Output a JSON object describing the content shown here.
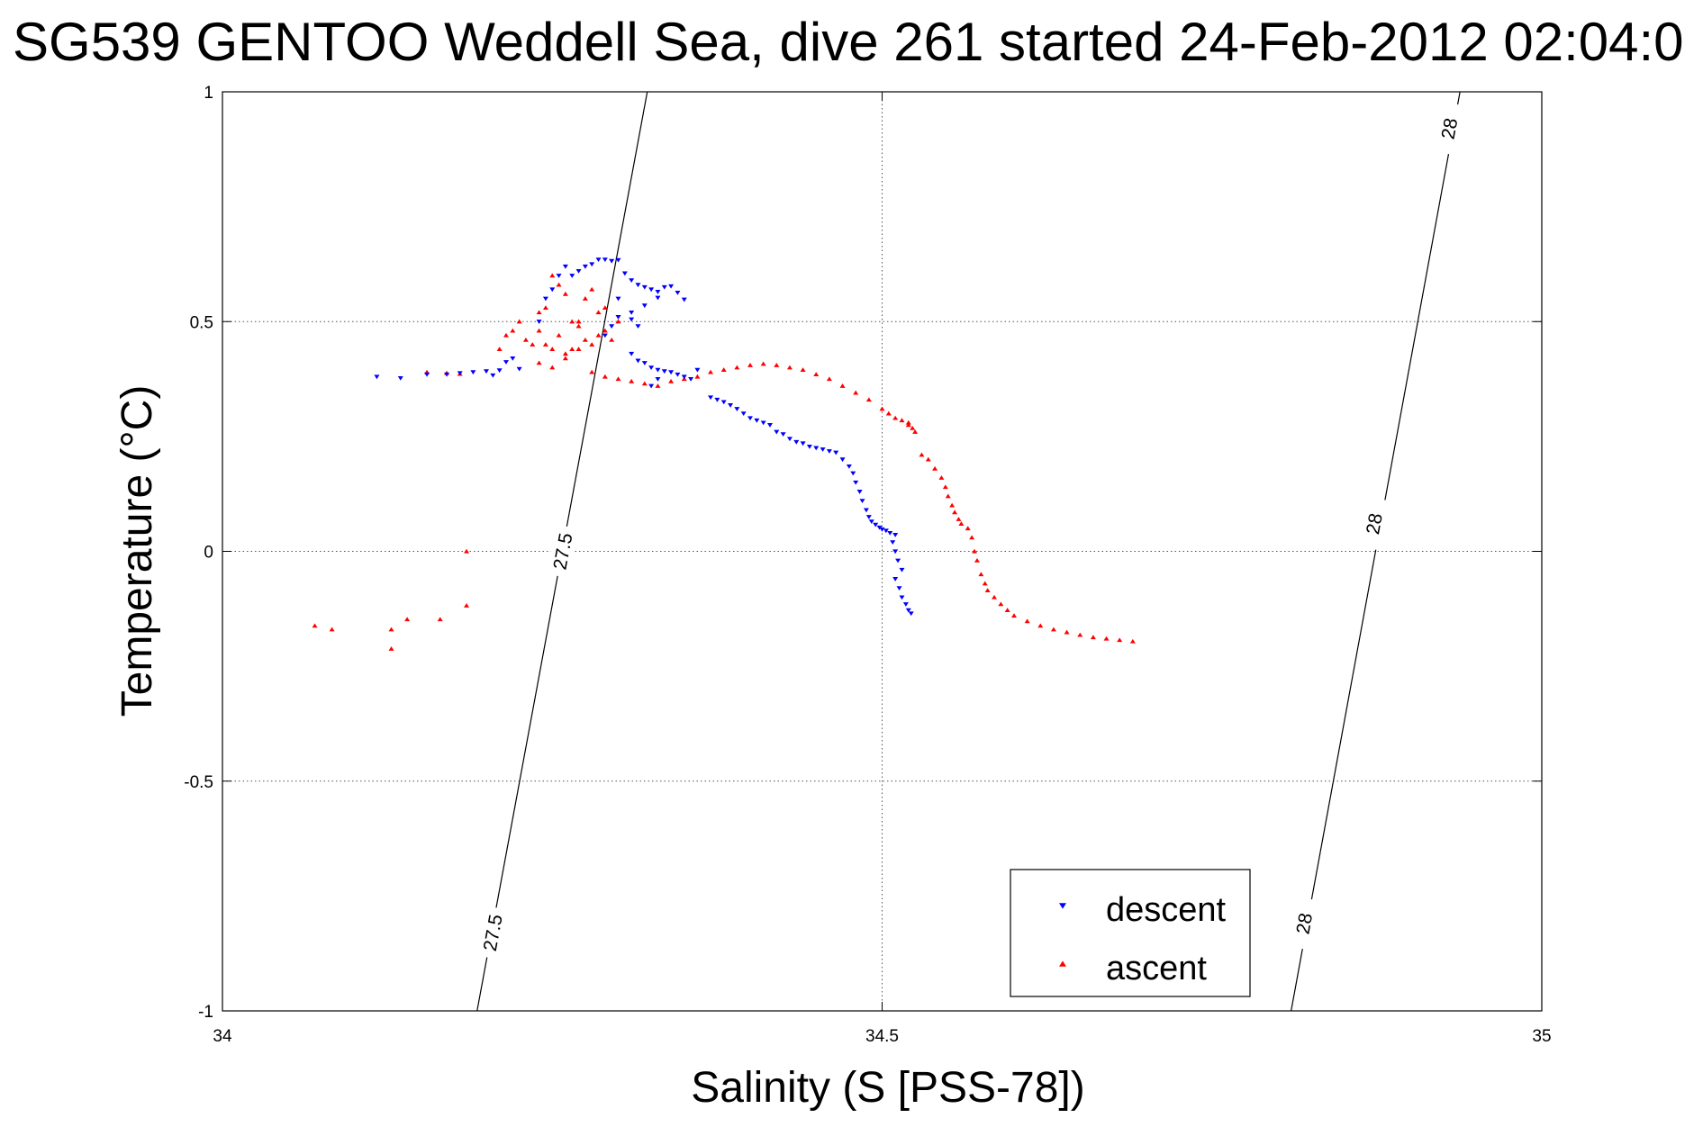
{
  "chart_data": {
    "type": "scatter",
    "title": "SG539 GENTOO Weddell Sea, dive 261 started 24-Feb-2012 02:04:0",
    "xlabel": "Salinity (S [PSS-78])",
    "ylabel": "Temperature (°C)",
    "xlim": [
      34,
      35
    ],
    "ylim": [
      -1,
      1
    ],
    "xticks": [
      34,
      34.5,
      35
    ],
    "xtick_labels": [
      "34",
      "34.5",
      "35"
    ],
    "yticks": [
      -1,
      -0.5,
      0,
      0.5,
      1
    ],
    "ytick_labels": [
      "-1",
      "-0.5",
      "0",
      "0.5",
      "1"
    ],
    "grid": true,
    "legend_position": "bottom-right",
    "density_contours": [
      {
        "level": "27.5",
        "points": [
          [
            34.193,
            -1
          ],
          [
            34.322,
            1
          ]
        ],
        "label_positions": [
          [
            34.205,
            -0.83
          ],
          [
            34.258,
            0
          ]
        ]
      },
      {
        "level": "28",
        "points": [
          [
            34.81,
            -1
          ],
          [
            34.938,
            1
          ]
        ],
        "label_positions": [
          [
            34.82,
            -0.81
          ],
          [
            34.873,
            0.06
          ],
          [
            34.93,
            0.92
          ]
        ]
      }
    ],
    "series": [
      {
        "name": "descent",
        "color": "#0000ff",
        "marker": "triangle-down",
        "points": [
          [
            34.117,
            0.38
          ],
          [
            34.135,
            0.377
          ],
          [
            34.155,
            0.385
          ],
          [
            34.17,
            0.385
          ],
          [
            34.18,
            0.388
          ],
          [
            34.19,
            0.39
          ],
          [
            34.2,
            0.392
          ],
          [
            34.205,
            0.383
          ],
          [
            34.21,
            0.394
          ],
          [
            34.215,
            0.412
          ],
          [
            34.22,
            0.42
          ],
          [
            34.225,
            0.397
          ],
          [
            34.24,
            0.5
          ],
          [
            34.245,
            0.55
          ],
          [
            34.25,
            0.57
          ],
          [
            34.255,
            0.6
          ],
          [
            34.26,
            0.62
          ],
          [
            34.265,
            0.6
          ],
          [
            34.27,
            0.61
          ],
          [
            34.275,
            0.62
          ],
          [
            34.28,
            0.625
          ],
          [
            34.285,
            0.635
          ],
          [
            34.29,
            0.635
          ],
          [
            34.295,
            0.632
          ],
          [
            34.3,
            0.634
          ],
          [
            34.305,
            0.605
          ],
          [
            34.31,
            0.59
          ],
          [
            34.315,
            0.58
          ],
          [
            34.32,
            0.575
          ],
          [
            34.325,
            0.57
          ],
          [
            34.33,
            0.565
          ],
          [
            34.335,
            0.575
          ],
          [
            34.34,
            0.577
          ],
          [
            34.345,
            0.563
          ],
          [
            34.35,
            0.548
          ],
          [
            34.33,
            0.552
          ],
          [
            34.32,
            0.535
          ],
          [
            34.31,
            0.52
          ],
          [
            34.3,
            0.51
          ],
          [
            34.295,
            0.49
          ],
          [
            34.29,
            0.47
          ],
          [
            34.3,
            0.55
          ],
          [
            34.31,
            0.505
          ],
          [
            34.315,
            0.49
          ],
          [
            34.31,
            0.43
          ],
          [
            34.315,
            0.415
          ],
          [
            34.32,
            0.41
          ],
          [
            34.325,
            0.4
          ],
          [
            34.33,
            0.395
          ],
          [
            34.335,
            0.392
          ],
          [
            34.34,
            0.39
          ],
          [
            34.345,
            0.385
          ],
          [
            34.35,
            0.38
          ],
          [
            34.33,
            0.375
          ],
          [
            34.325,
            0.36
          ],
          [
            34.355,
            0.375
          ],
          [
            34.36,
            0.395
          ],
          [
            34.37,
            0.335
          ],
          [
            34.375,
            0.33
          ],
          [
            34.38,
            0.325
          ],
          [
            34.385,
            0.318
          ],
          [
            34.39,
            0.31
          ],
          [
            34.395,
            0.3
          ],
          [
            34.4,
            0.29
          ],
          [
            34.405,
            0.285
          ],
          [
            34.41,
            0.28
          ],
          [
            34.415,
            0.275
          ],
          [
            34.42,
            0.26
          ],
          [
            34.425,
            0.255
          ],
          [
            34.43,
            0.245
          ],
          [
            34.435,
            0.238
          ],
          [
            34.44,
            0.235
          ],
          [
            34.445,
            0.228
          ],
          [
            34.45,
            0.225
          ],
          [
            34.455,
            0.222
          ],
          [
            34.46,
            0.218
          ],
          [
            34.465,
            0.215
          ],
          [
            34.47,
            0.2
          ],
          [
            34.475,
            0.185
          ],
          [
            34.478,
            0.17
          ],
          [
            34.48,
            0.15
          ],
          [
            34.483,
            0.13
          ],
          [
            34.485,
            0.11
          ],
          [
            34.488,
            0.09
          ],
          [
            34.49,
            0.075
          ],
          [
            34.492,
            0.065
          ],
          [
            34.495,
            0.058
          ],
          [
            34.498,
            0.052
          ],
          [
            34.5,
            0.048
          ],
          [
            34.503,
            0.045
          ],
          [
            34.506,
            0.04
          ],
          [
            34.51,
            0.036
          ],
          [
            34.508,
            0.02
          ],
          [
            34.51,
            0.0
          ],
          [
            34.512,
            -0.02
          ],
          [
            34.515,
            -0.04
          ],
          [
            34.51,
            -0.06
          ],
          [
            34.513,
            -0.08
          ],
          [
            34.515,
            -0.1
          ],
          [
            34.518,
            -0.115
          ],
          [
            34.52,
            -0.128
          ],
          [
            34.522,
            -0.135
          ]
        ]
      },
      {
        "name": "ascent",
        "color": "#ff0000",
        "marker": "triangle-up",
        "points": [
          [
            34.07,
            -0.162
          ],
          [
            34.083,
            -0.17
          ],
          [
            34.128,
            -0.17
          ],
          [
            34.128,
            -0.212
          ],
          [
            34.14,
            -0.148
          ],
          [
            34.165,
            -0.148
          ],
          [
            34.185,
            -0.118
          ],
          [
            34.185,
            0.0
          ],
          [
            34.155,
            0.39
          ],
          [
            34.17,
            0.388
          ],
          [
            34.18,
            0.386
          ],
          [
            34.21,
            0.44
          ],
          [
            34.215,
            0.47
          ],
          [
            34.22,
            0.48
          ],
          [
            34.225,
            0.5
          ],
          [
            34.23,
            0.46
          ],
          [
            34.235,
            0.45
          ],
          [
            34.24,
            0.52
          ],
          [
            34.245,
            0.53
          ],
          [
            34.25,
            0.6
          ],
          [
            34.255,
            0.58
          ],
          [
            34.26,
            0.56
          ],
          [
            34.265,
            0.5
          ],
          [
            34.27,
            0.49
          ],
          [
            34.275,
            0.55
          ],
          [
            34.28,
            0.57
          ],
          [
            34.285,
            0.52
          ],
          [
            34.29,
            0.48
          ],
          [
            34.295,
            0.46
          ],
          [
            34.3,
            0.5
          ],
          [
            34.255,
            0.47
          ],
          [
            34.26,
            0.43
          ],
          [
            34.27,
            0.44
          ],
          [
            34.28,
            0.45
          ],
          [
            34.285,
            0.47
          ],
          [
            34.24,
            0.48
          ],
          [
            34.245,
            0.45
          ],
          [
            34.25,
            0.44
          ],
          [
            34.27,
            0.5
          ],
          [
            34.275,
            0.46
          ],
          [
            34.29,
            0.53
          ],
          [
            34.24,
            0.41
          ],
          [
            34.25,
            0.4
          ],
          [
            34.26,
            0.42
          ],
          [
            34.265,
            0.44
          ],
          [
            34.28,
            0.39
          ],
          [
            34.29,
            0.38
          ],
          [
            34.3,
            0.375
          ],
          [
            34.31,
            0.37
          ],
          [
            34.32,
            0.365
          ],
          [
            34.33,
            0.36
          ],
          [
            34.34,
            0.37
          ],
          [
            34.35,
            0.375
          ],
          [
            34.36,
            0.38
          ],
          [
            34.37,
            0.39
          ],
          [
            34.38,
            0.395
          ],
          [
            34.39,
            0.4
          ],
          [
            34.4,
            0.405
          ],
          [
            34.41,
            0.408
          ],
          [
            34.42,
            0.405
          ],
          [
            34.43,
            0.4
          ],
          [
            34.44,
            0.395
          ],
          [
            34.45,
            0.385
          ],
          [
            34.46,
            0.375
          ],
          [
            34.47,
            0.36
          ],
          [
            34.48,
            0.345
          ],
          [
            34.49,
            0.33
          ],
          [
            34.5,
            0.31
          ],
          [
            34.505,
            0.3
          ],
          [
            34.51,
            0.29
          ],
          [
            34.515,
            0.285
          ],
          [
            34.52,
            0.275
          ],
          [
            34.523,
            0.268
          ],
          [
            34.525,
            0.26
          ],
          [
            34.52,
            0.28
          ],
          [
            34.53,
            0.21
          ],
          [
            34.535,
            0.2
          ],
          [
            34.54,
            0.18
          ],
          [
            34.545,
            0.16
          ],
          [
            34.548,
            0.14
          ],
          [
            34.55,
            0.12
          ],
          [
            34.553,
            0.1
          ],
          [
            34.555,
            0.085
          ],
          [
            34.558,
            0.07
          ],
          [
            34.56,
            0.06
          ],
          [
            34.565,
            0.05
          ],
          [
            34.568,
            0.03
          ],
          [
            34.57,
            0.0
          ],
          [
            34.572,
            -0.02
          ],
          [
            34.575,
            -0.05
          ],
          [
            34.578,
            -0.07
          ],
          [
            34.58,
            -0.085
          ],
          [
            34.585,
            -0.1
          ],
          [
            34.59,
            -0.115
          ],
          [
            34.595,
            -0.128
          ],
          [
            34.6,
            -0.14
          ],
          [
            34.61,
            -0.152
          ],
          [
            34.62,
            -0.162
          ],
          [
            34.63,
            -0.17
          ],
          [
            34.64,
            -0.176
          ],
          [
            34.65,
            -0.182
          ],
          [
            34.66,
            -0.187
          ],
          [
            34.67,
            -0.19
          ],
          [
            34.68,
            -0.193
          ],
          [
            34.69,
            -0.196
          ]
        ]
      }
    ]
  }
}
